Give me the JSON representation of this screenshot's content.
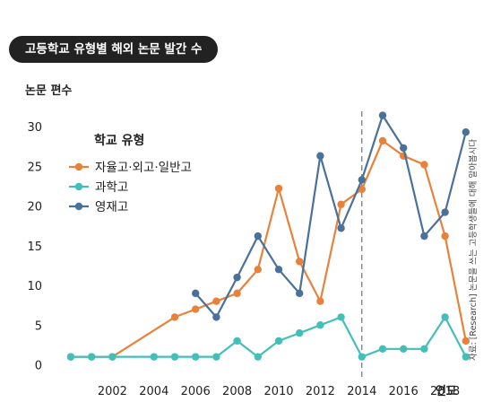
{
  "chart_data": {
    "type": "line",
    "title": "고등학교 유형별 해외 논문 발간 수",
    "ylabel": "논문 편수",
    "xlabel": "연도",
    "source": "자료: [Research] 논문을 쓰는 고등학생들에 대해 알아봅시다",
    "legend_title": "학교 유형",
    "legend_position": "top-left",
    "xlim": [
      2000,
      2019.3
    ],
    "ylim": [
      0,
      32
    ],
    "yticks": [
      0,
      5,
      10,
      15,
      20,
      25,
      30
    ],
    "xticks": [
      2002,
      2004,
      2006,
      2008,
      2010,
      2012,
      2014,
      2016,
      2018
    ],
    "reference_line_x": 2014,
    "grid": false,
    "series": [
      {
        "name": "자율고·외고·일반고",
        "color": "#e8823a",
        "points": [
          [
            2000,
            1
          ],
          [
            2001,
            1
          ],
          [
            2002,
            1
          ],
          [
            2005,
            6
          ],
          [
            2006,
            7
          ],
          [
            2007,
            8
          ],
          [
            2008,
            9
          ],
          [
            2009,
            12
          ],
          [
            2010,
            22.2
          ],
          [
            2011,
            13
          ],
          [
            2012,
            8
          ],
          [
            2013,
            20.2
          ],
          [
            2014,
            22.1
          ],
          [
            2015,
            28.2
          ],
          [
            2016,
            26.3
          ],
          [
            2017,
            25.2
          ],
          [
            2018,
            16.2
          ],
          [
            2019,
            3
          ]
        ]
      },
      {
        "name": "과학고",
        "color": "#44bfb8",
        "points": [
          [
            2000,
            1
          ],
          [
            2001,
            1
          ],
          [
            2002,
            1
          ],
          [
            2004,
            1
          ],
          [
            2005,
            1
          ],
          [
            2006,
            1
          ],
          [
            2007,
            1
          ],
          [
            2008,
            3
          ],
          [
            2009,
            1
          ],
          [
            2010,
            3
          ],
          [
            2011,
            4
          ],
          [
            2012,
            5
          ],
          [
            2013,
            6
          ],
          [
            2014,
            1
          ],
          [
            2015,
            2
          ],
          [
            2016,
            2
          ],
          [
            2017,
            2
          ],
          [
            2018,
            6
          ],
          [
            2019,
            1
          ]
        ]
      },
      {
        "name": "영재고",
        "color": "#49719a",
        "points": [
          [
            2006,
            9
          ],
          [
            2007,
            6
          ],
          [
            2008,
            11
          ],
          [
            2009,
            16.2
          ],
          [
            2010,
            12
          ],
          [
            2011,
            9
          ],
          [
            2012,
            26.3
          ],
          [
            2013,
            17.2
          ],
          [
            2014,
            23.3
          ],
          [
            2015,
            31.4
          ],
          [
            2016,
            27.3
          ],
          [
            2017,
            16.2
          ],
          [
            2018,
            19.2
          ],
          [
            2019,
            29.3
          ]
        ]
      }
    ]
  }
}
